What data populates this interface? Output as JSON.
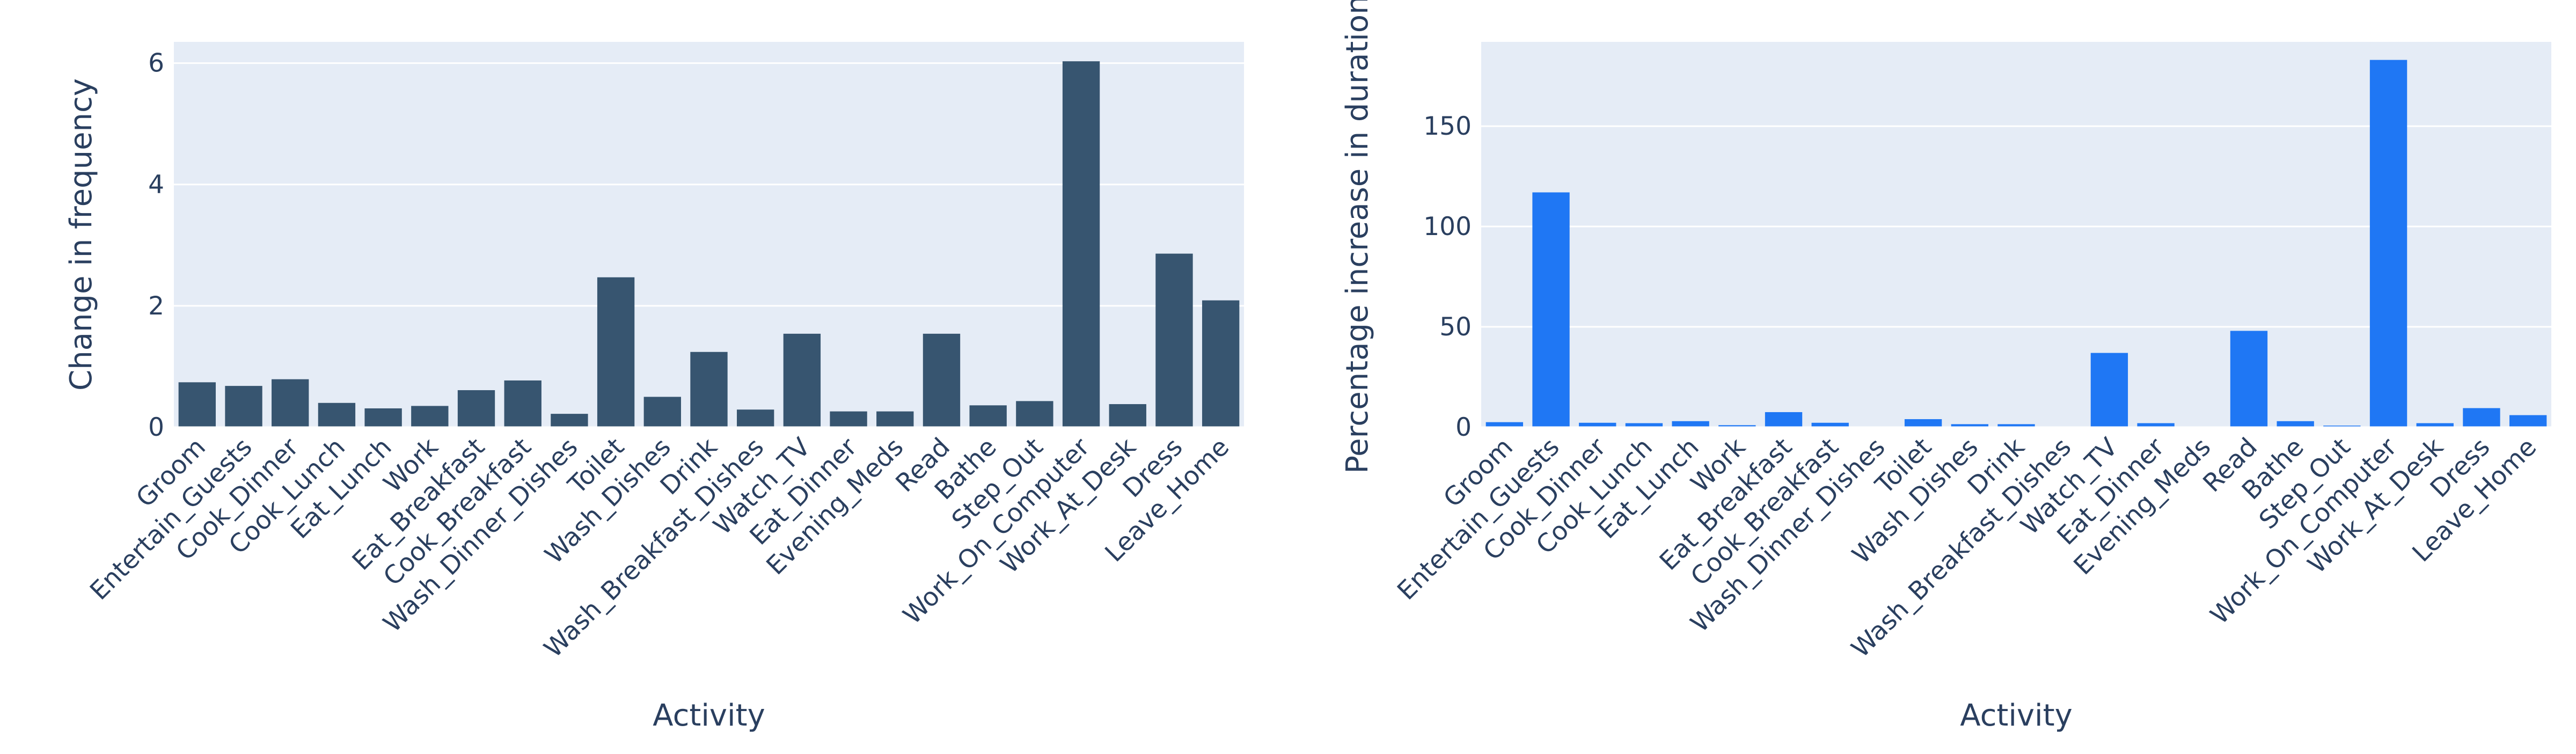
{
  "chart_data": [
    {
      "type": "bar",
      "xlabel": "Activity",
      "ylabel": "Change in frequency",
      "ylim": [
        0,
        6.35
      ],
      "yticks": [
        0,
        2,
        4,
        6
      ],
      "grid": true,
      "bar_color": "#375570",
      "plot_bg": "#e5ecf6",
      "categories": [
        "Groom",
        "Entertain_Guests",
        "Cook_Dinner",
        "Cook_Lunch",
        "Eat_Lunch",
        "Work",
        "Eat_Breakfast",
        "Cook_Breakfast",
        "Wash_Dinner_Dishes",
        "Toilet",
        "Wash_Dishes",
        "Drink",
        "Wash_Breakfast_Dishes",
        "Watch_TV",
        "Eat_Dinner",
        "Evening_Meds",
        "Read",
        "Bathe",
        "Step_Out",
        "Work_On_Computer",
        "Work_At_Desk",
        "Dress",
        "Leave_Home"
      ],
      "values": [
        0.74,
        0.68,
        0.79,
        0.4,
        0.31,
        0.35,
        0.61,
        0.77,
        0.22,
        2.47,
        0.5,
        1.24,
        0.29,
        1.54,
        0.26,
        0.26,
        1.54,
        0.36,
        0.43,
        6.03,
        0.38,
        2.86,
        2.09
      ]
    },
    {
      "type": "bar",
      "xlabel": "Activity",
      "ylabel": "Percentage increase in duration",
      "ylim": [
        0,
        192
      ],
      "yticks": [
        0,
        50,
        100,
        150
      ],
      "grid": true,
      "bar_color": "#1f77f4",
      "plot_bg": "#e5ecf6",
      "categories": [
        "Groom",
        "Entertain_Guests",
        "Cook_Dinner",
        "Cook_Lunch",
        "Eat_Lunch",
        "Work",
        "Eat_Breakfast",
        "Cook_Breakfast",
        "Wash_Dinner_Dishes",
        "Toilet",
        "Wash_Dishes",
        "Drink",
        "Wash_Breakfast_Dishes",
        "Watch_TV",
        "Eat_Dinner",
        "Evening_Meds",
        "Read",
        "Bathe",
        "Step_Out",
        "Work_On_Computer",
        "Work_At_Desk",
        "Dress",
        "Leave_Home"
      ],
      "values": [
        2.5,
        117,
        2.2,
        2.0,
        3.0,
        1.0,
        7.5,
        2.2,
        0.3,
        4.0,
        1.5,
        1.5,
        0.3,
        37,
        2.0,
        0.3,
        48,
        3.0,
        0.8,
        183,
        2.0,
        9.5,
        6.0
      ]
    }
  ]
}
